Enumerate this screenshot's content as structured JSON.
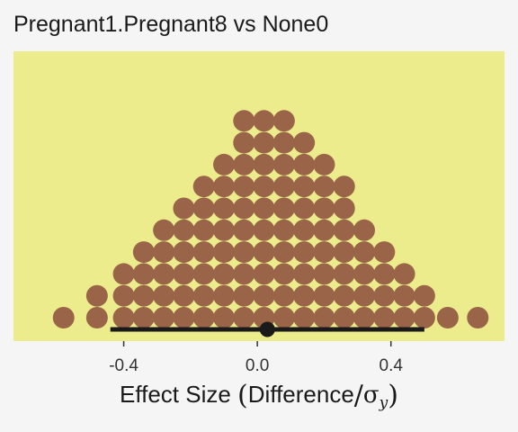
{
  "chart_data": {
    "type": "dotplot",
    "title": "Pregnant1.Pregnant8 vs None0",
    "xlabel": "Effect Size",
    "xlabel_expression": {
      "prefix": "Effect Size",
      "open": "(",
      "numerator": "Difference",
      "slash": "/",
      "symbol": "σ",
      "subscript": "y",
      "close": ")"
    },
    "ylabel": "",
    "x_ticks": [
      -0.4,
      0.0,
      0.4
    ],
    "x_tick_labels": [
      "-0.4",
      "0.0",
      "0.4"
    ],
    "xlim": [
      -0.73,
      0.74
    ],
    "grid": false,
    "legend": "none",
    "bins": [
      {
        "x": -0.58,
        "count": 1
      },
      {
        "x": -0.48,
        "count": 2
      },
      {
        "x": -0.4,
        "count": 3
      },
      {
        "x": -0.34,
        "count": 4
      },
      {
        "x": -0.28,
        "count": 5
      },
      {
        "x": -0.22,
        "count": 6
      },
      {
        "x": -0.16,
        "count": 7
      },
      {
        "x": -0.1,
        "count": 8
      },
      {
        "x": -0.04,
        "count": 10
      },
      {
        "x": 0.02,
        "count": 10
      },
      {
        "x": 0.08,
        "count": 10
      },
      {
        "x": 0.14,
        "count": 9
      },
      {
        "x": 0.2,
        "count": 8
      },
      {
        "x": 0.26,
        "count": 7
      },
      {
        "x": 0.32,
        "count": 5
      },
      {
        "x": 0.38,
        "count": 4
      },
      {
        "x": 0.44,
        "count": 3
      },
      {
        "x": 0.5,
        "count": 2
      },
      {
        "x": 0.57,
        "count": 1
      },
      {
        "x": 0.66,
        "count": 1
      }
    ],
    "interval": {
      "low": -0.44,
      "high": 0.5
    },
    "point_estimate": 0.03,
    "colors": {
      "panel": "#ecec8c",
      "dots": "#9a6448",
      "interval": "#1a1a1a",
      "background": "#f5f5f5"
    }
  }
}
